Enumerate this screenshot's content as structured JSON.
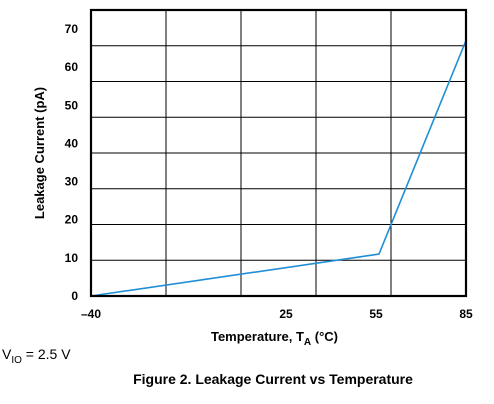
{
  "chart_data": {
    "type": "line",
    "title": "",
    "xlabel": {
      "main": "Temperature, T",
      "sub": "A",
      "unit": " (°C)"
    },
    "ylabel": "Leakage Current (pA)",
    "xlim": [
      -40,
      85
    ],
    "ylim": [
      0,
      75
    ],
    "xticks": [
      -40,
      25,
      55,
      85
    ],
    "xtick_labels": [
      "–40",
      "25",
      "55",
      "85"
    ],
    "yticks": [
      0,
      10,
      20,
      30,
      40,
      50,
      60,
      70
    ],
    "grid": true,
    "series": [
      {
        "color": "#1e8fd6",
        "x": [
          -40,
          56,
          85
        ],
        "y": [
          0,
          11,
          67
        ]
      }
    ]
  },
  "figure": {
    "caption": "Figure 2. Leakage Current vs Temperature",
    "condition": {
      "var": "V",
      "sub": "IO",
      "value": " = 2.5 V"
    }
  }
}
